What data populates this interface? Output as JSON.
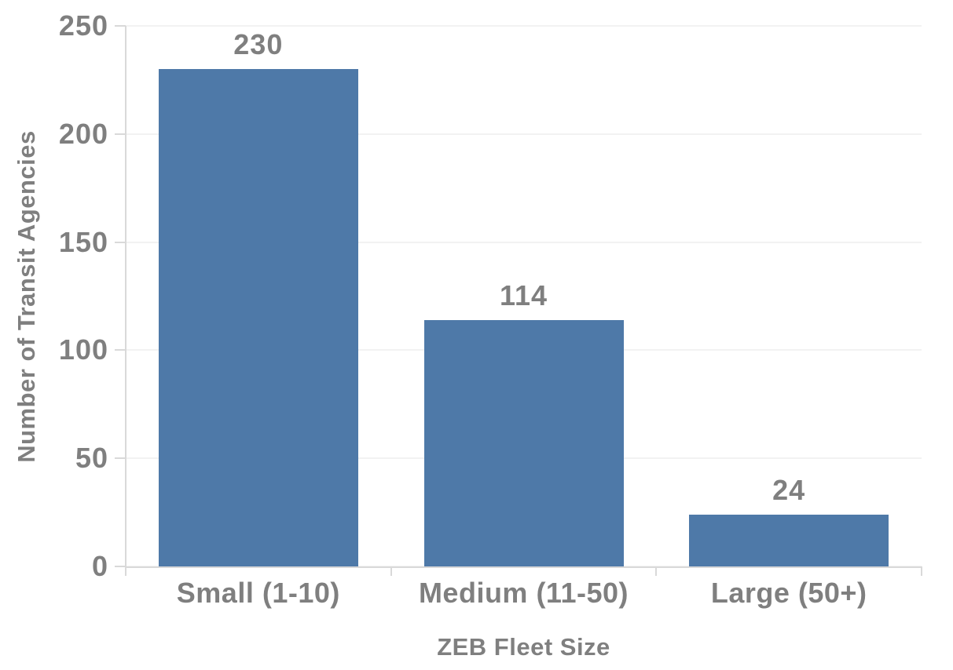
{
  "chart_data": {
    "type": "bar",
    "title": "",
    "xlabel": "ZEB Fleet Size",
    "ylabel": "Number of Transit Agencies",
    "categories": [
      "Small (1-10)",
      "Medium (11-50)",
      "Large (50+)"
    ],
    "values": [
      230,
      114,
      24
    ],
    "data_labels": [
      "230",
      "114",
      "24"
    ],
    "ylim": [
      0,
      250
    ],
    "yticks": [
      0,
      50,
      100,
      150,
      200,
      250
    ],
    "ytick_labels": [
      "0",
      "50",
      "100",
      "150",
      "200",
      "250"
    ],
    "grid": "horizontal",
    "legend": "none",
    "bar_color": "#4E79A8",
    "text_color": "#7F7F7F",
    "gridline_color": "#F2F2F2",
    "axis_line_color": "#D9D9D9",
    "background_color": "#FFFFFF"
  }
}
